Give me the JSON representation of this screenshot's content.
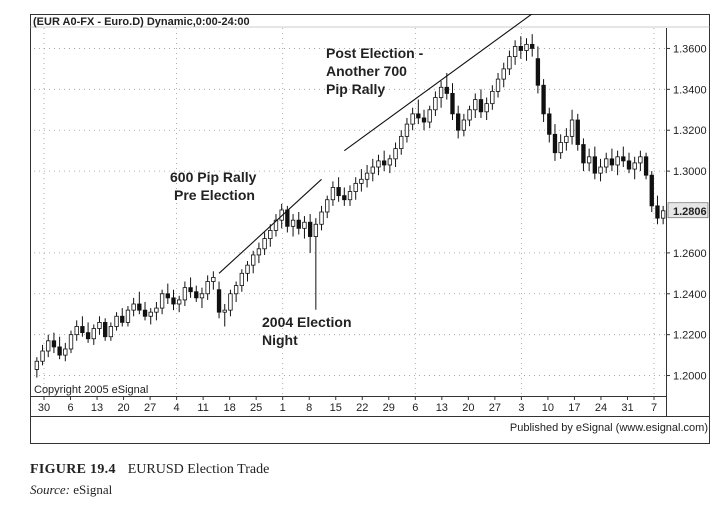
{
  "chart_data": {
    "type": "candlestick",
    "title": "(EUR A0-FX - Euro.D) Dynamic,0:00-24:00",
    "publisher": "Published by eSignal (www.esignal.com)",
    "copyright": "Copyright 2005 eSignal",
    "ylim": [
      1.19,
      1.37
    ],
    "y_ticks": [
      "1.2000",
      "1.2200",
      "1.2400",
      "1.2600",
      "1.3000",
      "1.3200",
      "1.3400",
      "1.3600"
    ],
    "last_price": "1.2806",
    "x_ticks": [
      "30",
      "6",
      "13",
      "20",
      "27",
      "4",
      "11",
      "18",
      "25",
      "1",
      "8",
      "15",
      "22",
      "29",
      "6",
      "13",
      "20",
      "27",
      "3",
      "10",
      "17",
      "24",
      "31",
      "7"
    ],
    "grid": true,
    "candles": [
      [
        1.203,
        1.209,
        1.199,
        1.207
      ],
      [
        1.207,
        1.215,
        1.205,
        1.212
      ],
      [
        1.212,
        1.22,
        1.209,
        1.217
      ],
      [
        1.217,
        1.221,
        1.211,
        1.214
      ],
      [
        1.214,
        1.219,
        1.208,
        1.21
      ],
      [
        1.21,
        1.216,
        1.207,
        1.213
      ],
      [
        1.213,
        1.222,
        1.211,
        1.22
      ],
      [
        1.22,
        1.227,
        1.217,
        1.224
      ],
      [
        1.224,
        1.229,
        1.219,
        1.221
      ],
      [
        1.221,
        1.226,
        1.216,
        1.218
      ],
      [
        1.218,
        1.225,
        1.215,
        1.223
      ],
      [
        1.223,
        1.229,
        1.22,
        1.226
      ],
      [
        1.226,
        1.228,
        1.217,
        1.219
      ],
      [
        1.219,
        1.226,
        1.217,
        1.224
      ],
      [
        1.224,
        1.231,
        1.222,
        1.229
      ],
      [
        1.229,
        1.233,
        1.224,
        1.226
      ],
      [
        1.226,
        1.234,
        1.224,
        1.232
      ],
      [
        1.232,
        1.238,
        1.229,
        1.235
      ],
      [
        1.235,
        1.241,
        1.23,
        1.232
      ],
      [
        1.232,
        1.236,
        1.227,
        1.229
      ],
      [
        1.229,
        1.233,
        1.225,
        1.231
      ],
      [
        1.231,
        1.236,
        1.227,
        1.233
      ],
      [
        1.233,
        1.242,
        1.23,
        1.24
      ],
      [
        1.24,
        1.245,
        1.235,
        1.238
      ],
      [
        1.238,
        1.242,
        1.232,
        1.235
      ],
      [
        1.235,
        1.239,
        1.231,
        1.237
      ],
      [
        1.237,
        1.246,
        1.234,
        1.243
      ],
      [
        1.243,
        1.248,
        1.238,
        1.241
      ],
      [
        1.241,
        1.244,
        1.236,
        1.238
      ],
      [
        1.238,
        1.243,
        1.233,
        1.24
      ],
      [
        1.24,
        1.249,
        1.237,
        1.246
      ],
      [
        1.246,
        1.251,
        1.242,
        1.248
      ],
      [
        1.242,
        1.246,
        1.228,
        1.231
      ],
      [
        1.231,
        1.235,
        1.224,
        1.232
      ],
      [
        1.232,
        1.242,
        1.229,
        1.24
      ],
      [
        1.24,
        1.246,
        1.236,
        1.244
      ],
      [
        1.244,
        1.252,
        1.241,
        1.25
      ],
      [
        1.25,
        1.256,
        1.246,
        1.254
      ],
      [
        1.254,
        1.261,
        1.25,
        1.259
      ],
      [
        1.259,
        1.265,
        1.255,
        1.262
      ],
      [
        1.262,
        1.27,
        1.259,
        1.267
      ],
      [
        1.267,
        1.274,
        1.263,
        1.271
      ],
      [
        1.271,
        1.279,
        1.268,
        1.276
      ],
      [
        1.276,
        1.284,
        1.272,
        1.281
      ],
      [
        1.281,
        1.283,
        1.27,
        1.273
      ],
      [
        1.273,
        1.279,
        1.268,
        1.276
      ],
      [
        1.276,
        1.28,
        1.269,
        1.272
      ],
      [
        1.272,
        1.278,
        1.267,
        1.275
      ],
      [
        1.275,
        1.279,
        1.26,
        1.268
      ],
      [
        1.268,
        1.277,
        1.246,
        1.274
      ],
      [
        1.274,
        1.283,
        1.271,
        1.28
      ],
      [
        1.28,
        1.288,
        1.277,
        1.286
      ],
      [
        1.286,
        1.295,
        1.283,
        1.292
      ],
      [
        1.292,
        1.297,
        1.285,
        1.288
      ],
      [
        1.288,
        1.292,
        1.283,
        1.286
      ],
      [
        1.286,
        1.293,
        1.283,
        1.29
      ],
      [
        1.29,
        1.297,
        1.286,
        1.294
      ],
      [
        1.294,
        1.301,
        1.29,
        1.296
      ],
      [
        1.296,
        1.303,
        1.292,
        1.299
      ],
      [
        1.299,
        1.306,
        1.295,
        1.302
      ],
      [
        1.302,
        1.308,
        1.298,
        1.305
      ],
      [
        1.305,
        1.31,
        1.3,
        1.303
      ],
      [
        1.303,
        1.308,
        1.299,
        1.306
      ],
      [
        1.306,
        1.314,
        1.302,
        1.311
      ],
      [
        1.311,
        1.32,
        1.308,
        1.317
      ],
      [
        1.317,
        1.326,
        1.314,
        1.323
      ],
      [
        1.323,
        1.331,
        1.32,
        1.328
      ],
      [
        1.328,
        1.335,
        1.323,
        1.326
      ],
      [
        1.326,
        1.33,
        1.32,
        1.324
      ],
      [
        1.324,
        1.332,
        1.321,
        1.33
      ],
      [
        1.33,
        1.339,
        1.327,
        1.336
      ],
      [
        1.336,
        1.344,
        1.331,
        1.341
      ],
      [
        1.341,
        1.348,
        1.335,
        1.338
      ],
      [
        1.338,
        1.343,
        1.325,
        1.328
      ],
      [
        1.328,
        1.332,
        1.316,
        1.32
      ],
      [
        1.32,
        1.328,
        1.317,
        1.325
      ],
      [
        1.325,
        1.332,
        1.322,
        1.33
      ],
      [
        1.33,
        1.338,
        1.326,
        1.335
      ],
      [
        1.335,
        1.34,
        1.326,
        1.329
      ],
      [
        1.329,
        1.336,
        1.325,
        1.333
      ],
      [
        1.333,
        1.342,
        1.33,
        1.339
      ],
      [
        1.339,
        1.348,
        1.336,
        1.345
      ],
      [
        1.345,
        1.353,
        1.341,
        1.35
      ],
      [
        1.35,
        1.359,
        1.347,
        1.356
      ],
      [
        1.356,
        1.364,
        1.352,
        1.361
      ],
      [
        1.361,
        1.366,
        1.355,
        1.359
      ],
      [
        1.359,
        1.365,
        1.354,
        1.362
      ],
      [
        1.362,
        1.367,
        1.356,
        1.36
      ],
      [
        1.355,
        1.361,
        1.338,
        1.342
      ],
      [
        1.342,
        1.345,
        1.324,
        1.328
      ],
      [
        1.328,
        1.331,
        1.314,
        1.318
      ],
      [
        1.318,
        1.323,
        1.305,
        1.309
      ],
      [
        1.309,
        1.318,
        1.306,
        1.314
      ],
      [
        1.314,
        1.321,
        1.31,
        1.317
      ],
      [
        1.317,
        1.33,
        1.313,
        1.325
      ],
      [
        1.325,
        1.328,
        1.31,
        1.313
      ],
      [
        1.313,
        1.316,
        1.3,
        1.304
      ],
      [
        1.304,
        1.311,
        1.3,
        1.307
      ],
      [
        1.307,
        1.312,
        1.296,
        1.299
      ],
      [
        1.299,
        1.306,
        1.295,
        1.302
      ],
      [
        1.302,
        1.309,
        1.299,
        1.306
      ],
      [
        1.306,
        1.311,
        1.3,
        1.303
      ],
      [
        1.303,
        1.31,
        1.298,
        1.307
      ],
      [
        1.307,
        1.312,
        1.302,
        1.305
      ],
      [
        1.305,
        1.309,
        1.299,
        1.301
      ],
      [
        1.301,
        1.307,
        1.296,
        1.304
      ],
      [
        1.304,
        1.31,
        1.3,
        1.307
      ],
      [
        1.307,
        1.309,
        1.296,
        1.298
      ],
      [
        1.298,
        1.3,
        1.28,
        1.283
      ],
      [
        1.283,
        1.288,
        1.274,
        1.277
      ],
      [
        1.277,
        1.283,
        1.274,
        1.2806
      ]
    ],
    "trendlines": [
      {
        "from": [
          32,
          1.25
        ],
        "to": [
          50,
          1.296
        ]
      },
      {
        "from": [
          54,
          1.31
        ],
        "to": [
          88,
          1.379
        ]
      }
    ],
    "election_marker": {
      "index": 49,
      "from_price": 1.246,
      "to_price": 1.242
    },
    "annotations": [
      {
        "id": "pre",
        "lines": [
          "600 Pip Rally",
          "Pre Election"
        ]
      },
      {
        "id": "post",
        "lines": [
          "Post Election -",
          "Another 700",
          "Pip Rally"
        ]
      },
      {
        "id": "night",
        "lines": [
          "2004 Election",
          "Night"
        ]
      }
    ]
  },
  "caption": {
    "figure_label": "FIGURE 19.4",
    "figure_title": "EURUSD Election Trade",
    "source_label": "Source:",
    "source_value": "eSignal"
  }
}
